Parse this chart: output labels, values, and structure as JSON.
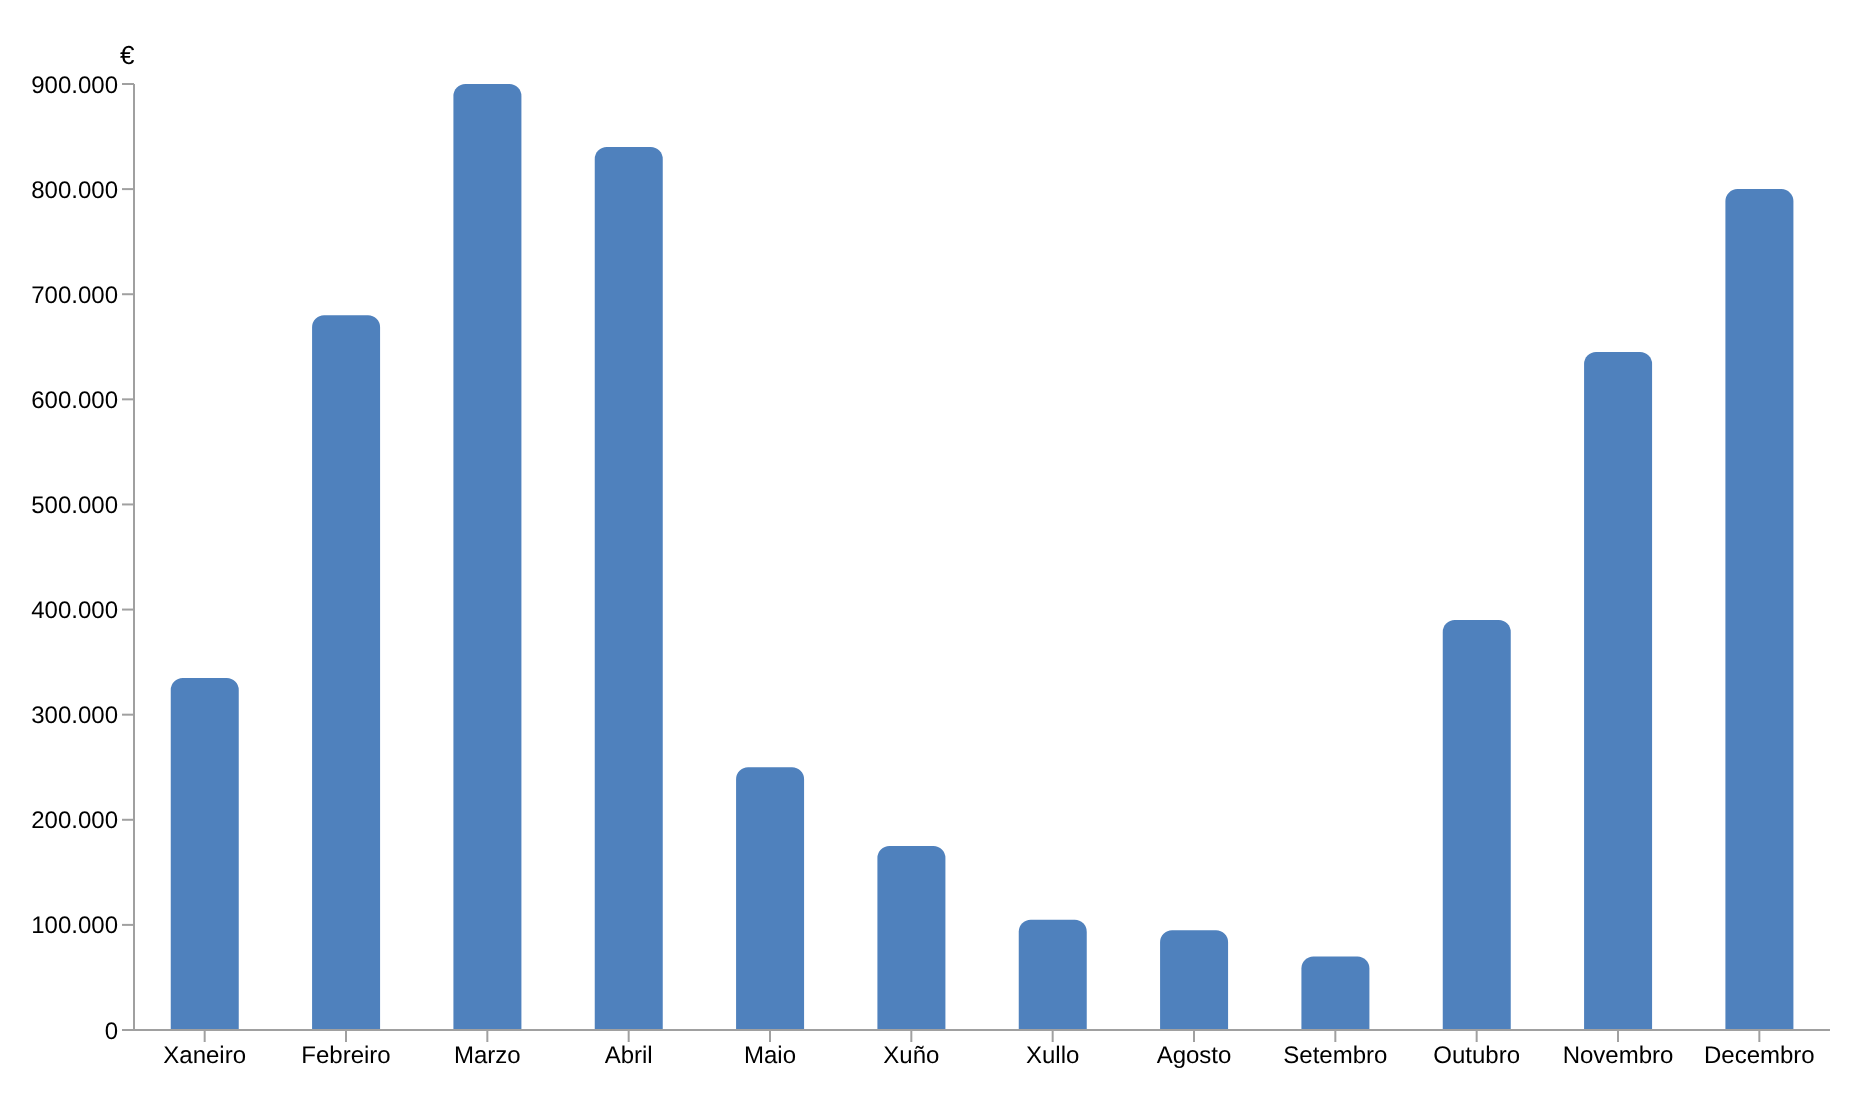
{
  "chart_data": {
    "type": "bar",
    "ylabel": "€",
    "categories": [
      "Xaneiro",
      "Febreiro",
      "Marzo",
      "Abril",
      "Maio",
      "Xuño",
      "Xullo",
      "Agosto",
      "Setembro",
      "Outubro",
      "Novembro",
      "Decembro"
    ],
    "values": [
      335000,
      680000,
      900000,
      840000,
      250000,
      175000,
      105000,
      95000,
      70000,
      390000,
      645000,
      800000
    ],
    "color": "#4f81bd",
    "ylim": [
      0,
      900000
    ],
    "yticks": [
      {
        "value": 0,
        "label": "0"
      },
      {
        "value": 100000,
        "label": "100.000"
      },
      {
        "value": 200000,
        "label": "200.000"
      },
      {
        "value": 300000,
        "label": "300.000"
      },
      {
        "value": 400000,
        "label": "400.000"
      },
      {
        "value": 500000,
        "label": "500.000"
      },
      {
        "value": 600000,
        "label": "600.000"
      },
      {
        "value": 700000,
        "label": "700.000"
      },
      {
        "value": 800000,
        "label": "800.000"
      },
      {
        "value": 900000,
        "label": "900.000"
      }
    ],
    "grid": false,
    "legend": false
  }
}
